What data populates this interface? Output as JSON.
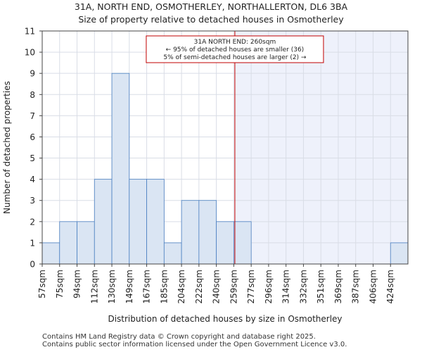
{
  "title_line1": "31A, NORTH END, OSMOTHERLEY, NORTHALLERTON, DL6 3BA",
  "title_line2": "Size of property relative to detached houses in Osmotherley",
  "footer_line1": "Contains HM Land Registry data © Crown copyright and database right 2025.",
  "footer_line2": "Contains public sector information licensed under the Open Government Licence v3.0.",
  "colors": {
    "bar_fill": "#dae5f3",
    "bar_stroke": "#4a7fc1",
    "marker_line": "#c00000",
    "shade": "#eef1fb",
    "grid": "#d9dde6"
  },
  "chart_data": {
    "type": "bar",
    "title": "Size of property relative to detached houses in Osmotherley",
    "xlabel": "Distribution of detached houses by size in Osmotherley",
    "ylabel": "Number of detached properties",
    "ylim": [
      0,
      11
    ],
    "yticks": [
      0,
      1,
      2,
      3,
      4,
      5,
      6,
      7,
      8,
      9,
      10,
      11
    ],
    "grid": true,
    "categories": [
      "57sqm",
      "75sqm",
      "94sqm",
      "112sqm",
      "130sqm",
      "149sqm",
      "167sqm",
      "185sqm",
      "204sqm",
      "222sqm",
      "240sqm",
      "259sqm",
      "277sqm",
      "296sqm",
      "314sqm",
      "332sqm",
      "351sqm",
      "369sqm",
      "387sqm",
      "406sqm",
      "424sqm"
    ],
    "values": [
      1,
      2,
      2,
      4,
      9,
      4,
      4,
      1,
      3,
      3,
      2,
      2,
      0,
      0,
      0,
      0,
      0,
      0,
      0,
      0,
      1
    ],
    "marker": {
      "value_sqm": 260,
      "label": "31A NORTH END: 260sqm",
      "lines": [
        "31A NORTH END: 260sqm",
        "← 95% of detached houses are smaller (36)",
        "5% of semi-detached houses are larger (2) →"
      ]
    }
  }
}
